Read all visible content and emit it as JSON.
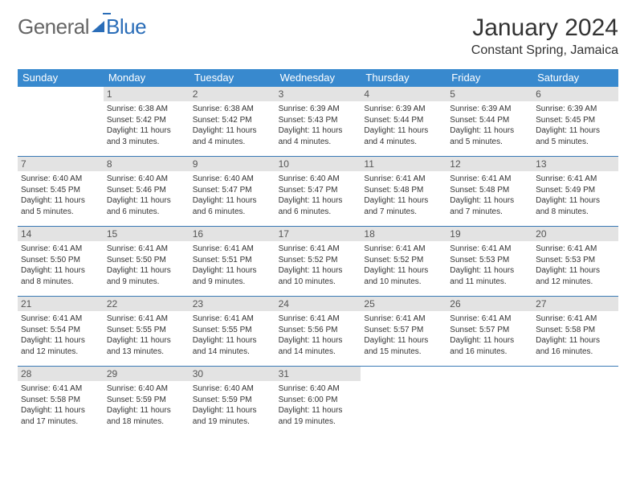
{
  "logo": {
    "text1": "General",
    "text2": "Blue"
  },
  "title": {
    "month": "January 2024",
    "location": "Constant Spring, Jamaica"
  },
  "colors": {
    "header_bg": "#3889ce",
    "header_text": "#ffffff",
    "daynum_bg": "#e3e3e3",
    "rule": "#3a7ab5"
  },
  "day_names": [
    "Sunday",
    "Monday",
    "Tuesday",
    "Wednesday",
    "Thursday",
    "Friday",
    "Saturday"
  ],
  "weeks": [
    [
      null,
      {
        "n": "1",
        "sr": "6:38 AM",
        "ss": "5:42 PM",
        "dl": "11 hours and 3 minutes."
      },
      {
        "n": "2",
        "sr": "6:38 AM",
        "ss": "5:42 PM",
        "dl": "11 hours and 4 minutes."
      },
      {
        "n": "3",
        "sr": "6:39 AM",
        "ss": "5:43 PM",
        "dl": "11 hours and 4 minutes."
      },
      {
        "n": "4",
        "sr": "6:39 AM",
        "ss": "5:44 PM",
        "dl": "11 hours and 4 minutes."
      },
      {
        "n": "5",
        "sr": "6:39 AM",
        "ss": "5:44 PM",
        "dl": "11 hours and 5 minutes."
      },
      {
        "n": "6",
        "sr": "6:39 AM",
        "ss": "5:45 PM",
        "dl": "11 hours and 5 minutes."
      }
    ],
    [
      {
        "n": "7",
        "sr": "6:40 AM",
        "ss": "5:45 PM",
        "dl": "11 hours and 5 minutes."
      },
      {
        "n": "8",
        "sr": "6:40 AM",
        "ss": "5:46 PM",
        "dl": "11 hours and 6 minutes."
      },
      {
        "n": "9",
        "sr": "6:40 AM",
        "ss": "5:47 PM",
        "dl": "11 hours and 6 minutes."
      },
      {
        "n": "10",
        "sr": "6:40 AM",
        "ss": "5:47 PM",
        "dl": "11 hours and 6 minutes."
      },
      {
        "n": "11",
        "sr": "6:41 AM",
        "ss": "5:48 PM",
        "dl": "11 hours and 7 minutes."
      },
      {
        "n": "12",
        "sr": "6:41 AM",
        "ss": "5:48 PM",
        "dl": "11 hours and 7 minutes."
      },
      {
        "n": "13",
        "sr": "6:41 AM",
        "ss": "5:49 PM",
        "dl": "11 hours and 8 minutes."
      }
    ],
    [
      {
        "n": "14",
        "sr": "6:41 AM",
        "ss": "5:50 PM",
        "dl": "11 hours and 8 minutes."
      },
      {
        "n": "15",
        "sr": "6:41 AM",
        "ss": "5:50 PM",
        "dl": "11 hours and 9 minutes."
      },
      {
        "n": "16",
        "sr": "6:41 AM",
        "ss": "5:51 PM",
        "dl": "11 hours and 9 minutes."
      },
      {
        "n": "17",
        "sr": "6:41 AM",
        "ss": "5:52 PM",
        "dl": "11 hours and 10 minutes."
      },
      {
        "n": "18",
        "sr": "6:41 AM",
        "ss": "5:52 PM",
        "dl": "11 hours and 10 minutes."
      },
      {
        "n": "19",
        "sr": "6:41 AM",
        "ss": "5:53 PM",
        "dl": "11 hours and 11 minutes."
      },
      {
        "n": "20",
        "sr": "6:41 AM",
        "ss": "5:53 PM",
        "dl": "11 hours and 12 minutes."
      }
    ],
    [
      {
        "n": "21",
        "sr": "6:41 AM",
        "ss": "5:54 PM",
        "dl": "11 hours and 12 minutes."
      },
      {
        "n": "22",
        "sr": "6:41 AM",
        "ss": "5:55 PM",
        "dl": "11 hours and 13 minutes."
      },
      {
        "n": "23",
        "sr": "6:41 AM",
        "ss": "5:55 PM",
        "dl": "11 hours and 14 minutes."
      },
      {
        "n": "24",
        "sr": "6:41 AM",
        "ss": "5:56 PM",
        "dl": "11 hours and 14 minutes."
      },
      {
        "n": "25",
        "sr": "6:41 AM",
        "ss": "5:57 PM",
        "dl": "11 hours and 15 minutes."
      },
      {
        "n": "26",
        "sr": "6:41 AM",
        "ss": "5:57 PM",
        "dl": "11 hours and 16 minutes."
      },
      {
        "n": "27",
        "sr": "6:41 AM",
        "ss": "5:58 PM",
        "dl": "11 hours and 16 minutes."
      }
    ],
    [
      {
        "n": "28",
        "sr": "6:41 AM",
        "ss": "5:58 PM",
        "dl": "11 hours and 17 minutes."
      },
      {
        "n": "29",
        "sr": "6:40 AM",
        "ss": "5:59 PM",
        "dl": "11 hours and 18 minutes."
      },
      {
        "n": "30",
        "sr": "6:40 AM",
        "ss": "5:59 PM",
        "dl": "11 hours and 19 minutes."
      },
      {
        "n": "31",
        "sr": "6:40 AM",
        "ss": "6:00 PM",
        "dl": "11 hours and 19 minutes."
      },
      null,
      null,
      null
    ]
  ],
  "labels": {
    "sunrise": "Sunrise:",
    "sunset": "Sunset:",
    "daylight": "Daylight:"
  }
}
